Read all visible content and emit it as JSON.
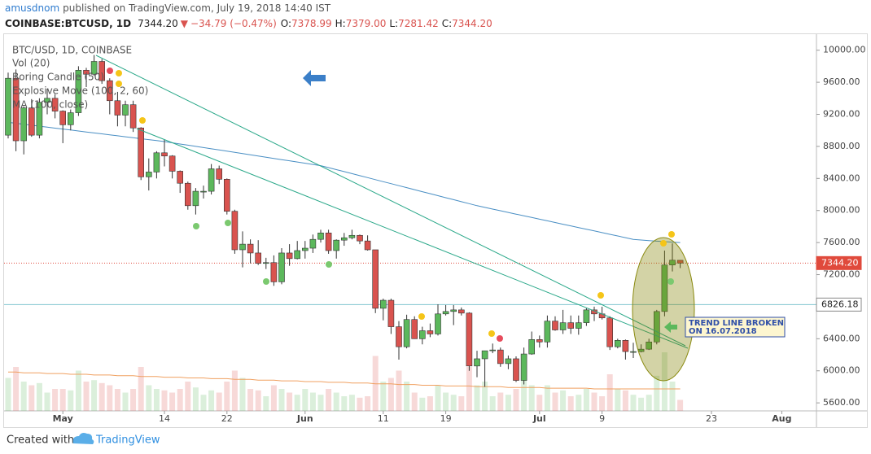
{
  "header": {
    "author": "amusdnom",
    "published": "published on TradingView.com, July 19, 2018 14:40 IST",
    "symbol": "COINBASE:BTCUSD, 1D",
    "last": "7344.20",
    "arrow": "▼",
    "change": "−34.79 (−0.47%)",
    "ohlc": [
      {
        "label": "O:",
        "value": "7378.99"
      },
      {
        "label": "H:",
        "value": "7379.00"
      },
      {
        "label": "L:",
        "value": "7281.42"
      },
      {
        "label": "C:",
        "value": "7344.20"
      }
    ]
  },
  "chart_data": {
    "type": "candlestick",
    "title": "BTC/USD, 1D, COINBASE",
    "legend": [
      "Vol (20)",
      "Boring Candle (50)",
      "Explosive Move (100, 2, 60)"
    ],
    "categories": [
      null,
      null,
      null,
      null,
      null,
      null,
      null,
      "May",
      null,
      null,
      null,
      null,
      null,
      null,
      null,
      null,
      null,
      null,
      null,
      null,
      "14",
      null,
      null,
      null,
      null,
      null,
      null,
      null,
      "22",
      null,
      null,
      null,
      null,
      null,
      null,
      null,
      null,
      null,
      "Jun",
      null,
      null,
      null,
      null,
      null,
      null,
      null,
      null,
      null,
      "11",
      null,
      null,
      null,
      null,
      null,
      null,
      null,
      "19",
      null,
      null,
      null,
      null,
      null,
      null,
      null,
      null,
      null,
      null,
      null,
      "Jul",
      null,
      null,
      null,
      null,
      null,
      null,
      null,
      "9",
      null,
      null,
      null,
      null,
      null,
      null,
      null,
      null,
      null,
      null,
      null,
      null,
      null,
      "23",
      null,
      null,
      null,
      null,
      null,
      null,
      null,
      null,
      "Aug",
      null,
      null,
      null,
      null
    ],
    "candles": [
      [
        8940,
        9720,
        8900,
        9650
      ],
      [
        9650,
        9760,
        8740,
        8870
      ],
      [
        8870,
        9300,
        8700,
        9280
      ],
      [
        9280,
        9390,
        8920,
        8940
      ],
      [
        8940,
        9400,
        8900,
        9350
      ],
      [
        9350,
        9520,
        9200,
        9400
      ],
      [
        9400,
        9450,
        9150,
        9240
      ],
      [
        9240,
        9250,
        8840,
        9070
      ],
      [
        9070,
        9260,
        9000,
        9220
      ],
      [
        9220,
        9800,
        9180,
        9750
      ],
      [
        9750,
        9780,
        9540,
        9700
      ],
      [
        9700,
        9940,
        9680,
        9860
      ],
      [
        9860,
        9890,
        9580,
        9620
      ],
      [
        9620,
        9650,
        9200,
        9370
      ],
      [
        9370,
        9480,
        9050,
        9190
      ],
      [
        9190,
        9370,
        9050,
        9320
      ],
      [
        9320,
        9370,
        8980,
        9030
      ],
      [
        9030,
        9040,
        8380,
        8420
      ],
      [
        8420,
        8650,
        8250,
        8480
      ],
      [
        8480,
        8740,
        8400,
        8720
      ],
      [
        8720,
        8880,
        8550,
        8680
      ],
      [
        8680,
        8690,
        8400,
        8490
      ],
      [
        8490,
        8500,
        8220,
        8340
      ],
      [
        8340,
        8360,
        8010,
        8060
      ],
      [
        8060,
        8280,
        7950,
        8240
      ],
      [
        8240,
        8310,
        8150,
        8240
      ],
      [
        8240,
        8580,
        8200,
        8520
      ],
      [
        8520,
        8560,
        8330,
        8390
      ],
      [
        8390,
        8400,
        7950,
        7990
      ],
      [
        7990,
        8010,
        7460,
        7510
      ],
      [
        7510,
        7740,
        7290,
        7580
      ],
      [
        7580,
        7640,
        7340,
        7470
      ],
      [
        7470,
        7630,
        7320,
        7340
      ],
      [
        7340,
        7410,
        7270,
        7350
      ],
      [
        7350,
        7440,
        7060,
        7110
      ],
      [
        7110,
        7530,
        7080,
        7470
      ],
      [
        7470,
        7580,
        7310,
        7400
      ],
      [
        7400,
        7620,
        7390,
        7500
      ],
      [
        7500,
        7620,
        7400,
        7530
      ],
      [
        7530,
        7700,
        7470,
        7640
      ],
      [
        7640,
        7760,
        7600,
        7720
      ],
      [
        7720,
        7760,
        7460,
        7500
      ],
      [
        7500,
        7640,
        7400,
        7630
      ],
      [
        7630,
        7720,
        7560,
        7660
      ],
      [
        7660,
        7760,
        7640,
        7690
      ],
      [
        7690,
        7700,
        7580,
        7620
      ],
      [
        7620,
        7690,
        7500,
        7510
      ],
      [
        7510,
        7510,
        6720,
        6780
      ],
      [
        6780,
        6900,
        6630,
        6880
      ],
      [
        6880,
        6900,
        6460,
        6550
      ],
      [
        6550,
        6620,
        6140,
        6300
      ],
      [
        6300,
        6700,
        6280,
        6640
      ],
      [
        6640,
        6680,
        6400,
        6400
      ],
      [
        6400,
        6550,
        6330,
        6500
      ],
      [
        6500,
        6590,
        6420,
        6460
      ],
      [
        6460,
        6830,
        6440,
        6710
      ],
      [
        6710,
        6820,
        6690,
        6740
      ],
      [
        6740,
        6820,
        6570,
        6760
      ],
      [
        6760,
        6790,
        6690,
        6720
      ],
      [
        6720,
        6730,
        6000,
        6060
      ],
      [
        6060,
        6250,
        5920,
        6150
      ],
      [
        6150,
        6250,
        5800,
        6250
      ],
      [
        6250,
        6340,
        6220,
        6260
      ],
      [
        6260,
        6290,
        6050,
        6090
      ],
      [
        6090,
        6190,
        6020,
        6150
      ],
      [
        6150,
        6180,
        5860,
        5880
      ],
      [
        5880,
        6290,
        5830,
        6210
      ],
      [
        6210,
        6490,
        6200,
        6390
      ],
      [
        6390,
        6440,
        6290,
        6360
      ],
      [
        6360,
        6690,
        6290,
        6620
      ],
      [
        6620,
        6680,
        6500,
        6510
      ],
      [
        6510,
        6760,
        6460,
        6600
      ],
      [
        6600,
        6690,
        6460,
        6530
      ],
      [
        6530,
        6690,
        6450,
        6600
      ],
      [
        6600,
        6780,
        6560,
        6760
      ],
      [
        6760,
        6800,
        6620,
        6710
      ],
      [
        6710,
        6800,
        6640,
        6660
      ],
      [
        6660,
        6680,
        6260,
        6300
      ],
      [
        6300,
        6400,
        6280,
        6380
      ],
      [
        6380,
        6390,
        6140,
        6240
      ],
      [
        6240,
        6350,
        6160,
        6240
      ],
      [
        6240,
        6330,
        6230,
        6270
      ],
      [
        6270,
        6400,
        6260,
        6360
      ],
      [
        6360,
        6760,
        6330,
        6740
      ],
      [
        6740,
        7500,
        6680,
        7320
      ],
      [
        7320,
        7590,
        7240,
        7380
      ],
      [
        7378.99,
        7379,
        7281.42,
        7344.2
      ],
      null,
      null,
      null,
      null,
      null,
      null,
      null,
      null,
      null,
      null,
      null,
      null,
      null,
      null,
      null,
      null,
      null
    ],
    "volume": [
      45,
      60,
      40,
      35,
      38,
      25,
      30,
      30,
      28,
      55,
      40,
      42,
      38,
      35,
      30,
      25,
      30,
      60,
      35,
      30,
      28,
      25,
      30,
      40,
      32,
      22,
      28,
      25,
      40,
      55,
      45,
      30,
      28,
      20,
      35,
      30,
      25,
      22,
      30,
      25,
      22,
      30,
      25,
      20,
      22,
      18,
      20,
      75,
      40,
      45,
      55,
      40,
      25,
      18,
      20,
      35,
      25,
      22,
      20,
      60,
      35,
      40,
      20,
      25,
      22,
      30,
      45,
      35,
      22,
      35,
      25,
      28,
      20,
      22,
      30,
      25,
      20,
      50,
      30,
      28,
      22,
      18,
      22,
      48,
      80,
      40,
      15,
      null,
      null,
      null,
      null,
      null,
      null,
      null,
      null,
      null,
      null,
      null,
      null,
      null,
      null,
      null,
      null,
      null
    ],
    "volume_ma": [
      53,
      53,
      52,
      52,
      52,
      51,
      51,
      51,
      50,
      50,
      50,
      49,
      49,
      49,
      48,
      48,
      48,
      47,
      47,
      47,
      46,
      46,
      46,
      45,
      45,
      45,
      44,
      44,
      44,
      43,
      43,
      43,
      42,
      42,
      42,
      41,
      41,
      41,
      40,
      40,
      40,
      39,
      39,
      39,
      38,
      38,
      38,
      37,
      37,
      37,
      36,
      36,
      36,
      35,
      35,
      35,
      34,
      34,
      34,
      34,
      33,
      33,
      33,
      33,
      32,
      32,
      32,
      32,
      32,
      31,
      31,
      31,
      31,
      31,
      31,
      30,
      30,
      30,
      30,
      30,
      30,
      30,
      30,
      30,
      30,
      30,
      30,
      null,
      null,
      null,
      null,
      null,
      null,
      null,
      null,
      null,
      null,
      null,
      null,
      null,
      null,
      null,
      null,
      null
    ],
    "volume_ma_color": "#f0a060",
    "series": [
      {
        "name": "MA (100, close)",
        "color": "#4a8fc4",
        "values": [
          9100,
          9088,
          9076,
          9064,
          9052,
          9040,
          9028,
          9016,
          9004,
          8992,
          8980,
          8968,
          8956,
          8944,
          8932,
          8920,
          8908,
          8896,
          8884,
          8872,
          8860,
          8845,
          8830,
          8815,
          8800,
          8785,
          8770,
          8755,
          8740,
          8725,
          8710,
          8695,
          8680,
          8665,
          8650,
          8635,
          8620,
          8605,
          8590,
          8575,
          8560,
          8535,
          8510,
          8485,
          8460,
          8435,
          8410,
          8385,
          8360,
          8335,
          8310,
          8285,
          8260,
          8235,
          8210,
          8185,
          8160,
          8135,
          8110,
          8085,
          8060,
          8039,
          8018,
          7997,
          7976,
          7955,
          7934,
          7913,
          7892,
          7871,
          7850,
          7829,
          7808,
          7787,
          7766,
          7745,
          7724,
          7703,
          7682,
          7661,
          7640,
          7632,
          7625,
          7618,
          7611,
          7605,
          7600,
          null,
          null,
          null,
          null,
          null,
          null,
          null,
          null,
          null,
          null,
          null,
          null,
          null,
          null,
          null,
          null,
          null
        ]
      }
    ],
    "up_color": "#5cb85c",
    "down_color": "#d9534f",
    "ylim": [
      5500,
      10200
    ],
    "yticks": [
      {
        "value": 5600,
        "label": "5600.00"
      },
      {
        "value": 6000,
        "label": "6000.00"
      },
      {
        "value": 6400,
        "label": "6400.00"
      },
      {
        "value": 6800,
        "label": "6800.00"
      },
      {
        "value": 7200,
        "label": "7200.00"
      },
      {
        "value": 7600,
        "label": "7600.00"
      },
      {
        "value": 8000,
        "label": "8000.00"
      },
      {
        "value": 8400,
        "label": "8400.00"
      },
      {
        "value": 8800,
        "label": "8800.00"
      },
      {
        "value": 9200,
        "label": "9200.00"
      },
      {
        "value": 9600,
        "label": "9600.00"
      },
      {
        "value": 10000,
        "label": "10000.00"
      }
    ],
    "price_lines": [
      {
        "value": 7344.2,
        "label": "7344.20",
        "color": "#e04a3c",
        "dashed": true
      },
      {
        "value": 6826.18,
        "label": "6826.18",
        "color": "#7fc4cf",
        "dashed": false
      }
    ],
    "annotation": [
      "TREND LINE BROKEN",
      "ON 16.07.2018"
    ]
  },
  "footer": {
    "created": "Created with",
    "brand": "TradingView"
  }
}
